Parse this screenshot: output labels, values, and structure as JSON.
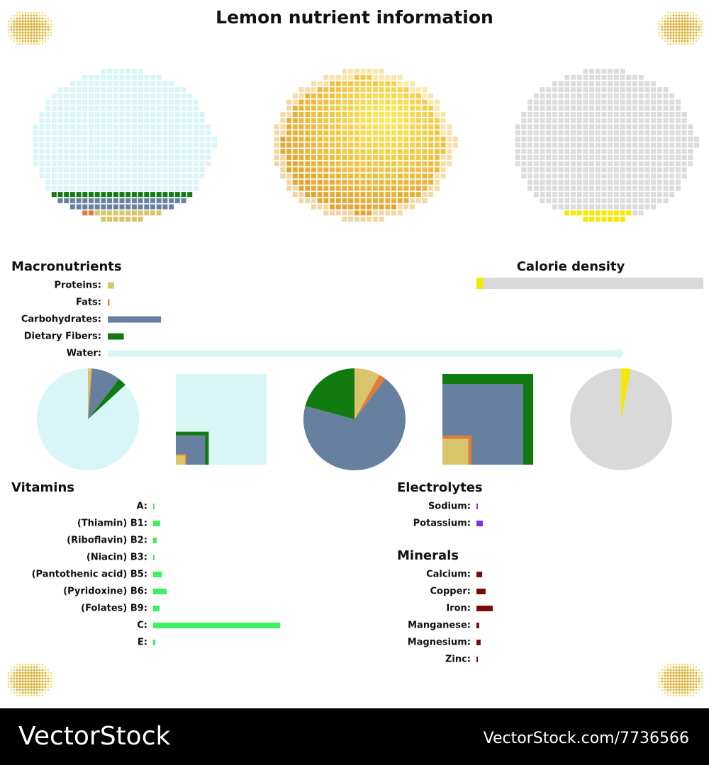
{
  "title": "Lemon nutrient information",
  "chart_data": [
    {
      "type": "bar",
      "title": "Macronutrients",
      "categories": [
        "Proteins:",
        "Fats:",
        "Carbohydrates:",
        "Dietary Fibers:",
        "Water:"
      ],
      "values": [
        1.1,
        0.3,
        9.3,
        2.8,
        89
      ],
      "colors": [
        "#d8c46a",
        "#e07b39",
        "#6880a0",
        "#117a11",
        "#d9f6f7"
      ],
      "xlim": [
        0,
        100
      ]
    },
    {
      "type": "bar",
      "title": "Calorie density",
      "values": [
        3
      ],
      "color": "#f5e800",
      "background": "#d9d9d9",
      "xlim": [
        0,
        100
      ]
    },
    {
      "type": "bar",
      "title": "Vitamins",
      "categories": [
        "A:",
        "(Thiamin) B1:",
        "(Riboflavin) B2:",
        "(Niacin) B3:",
        "(Pantothenic acid) B5:",
        "(Pyridoxine) B6:",
        "(Folates) B9:",
        "C:",
        "E:"
      ],
      "values": [
        0.7,
        3.5,
        1.8,
        0.7,
        4.3,
        6.8,
        3.2,
        64,
        1.1
      ],
      "color": "#3cf060",
      "xlim": [
        0,
        100
      ]
    },
    {
      "type": "bar",
      "title": "Electrolytes",
      "categories": [
        "Sodium:",
        "Potassium:"
      ],
      "values": [
        0.7,
        3.2
      ],
      "color": "#8a2be2",
      "xlim": [
        0,
        100
      ]
    },
    {
      "type": "bar",
      "title": "Minerals",
      "categories": [
        "Calcium:",
        "Copper:",
        "Iron:",
        "Manganese:",
        "Magnesium:",
        "Zinc:"
      ],
      "values": [
        2.9,
        4.6,
        8.2,
        1.4,
        2.1,
        0.7
      ],
      "color": "#7a0a0a",
      "xlim": [
        0,
        100
      ]
    }
  ],
  "watermark": {
    "brand": "VectorStock",
    "url": "VectorStock.com/7736566"
  }
}
